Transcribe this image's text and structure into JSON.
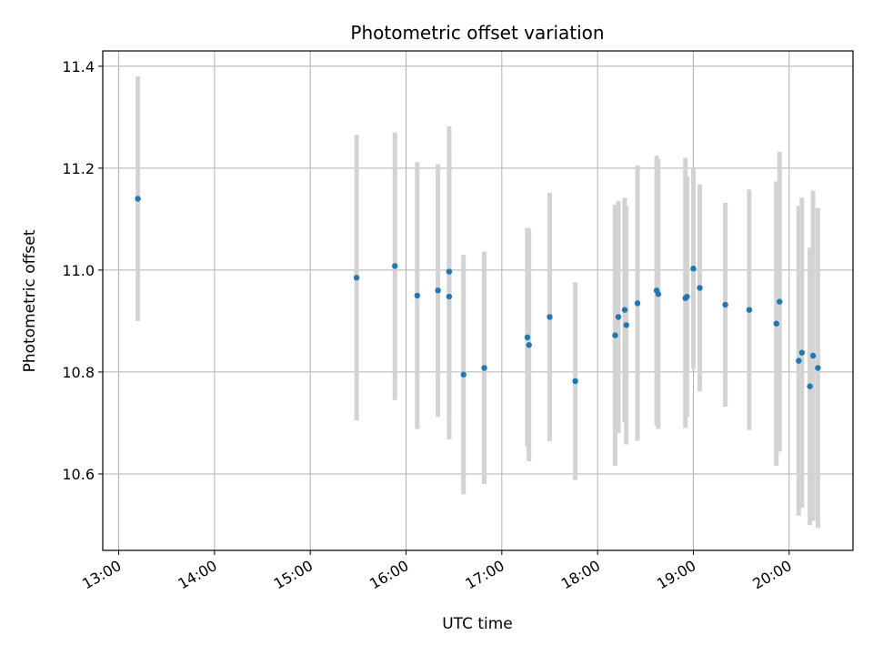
{
  "chart_data": {
    "type": "scatter",
    "title": "Photometric offset variation",
    "xlabel": "UTC time",
    "ylabel": "Photometric offset",
    "xlim": [
      "12:50",
      "20:40"
    ],
    "ylim": [
      10.45,
      11.43
    ],
    "x_ticks": [
      "13:00",
      "14:00",
      "15:00",
      "16:00",
      "17:00",
      "18:00",
      "19:00",
      "20:00"
    ],
    "y_ticks": [
      "10.6",
      "10.8",
      "11.0",
      "11.2",
      "11.4"
    ],
    "grid": true,
    "error_bar_color": "#d3d3d3",
    "point_color": "#1f77b4",
    "points": [
      {
        "x": "13:12",
        "y": 11.14,
        "ylow": 10.9,
        "yhigh": 11.38
      },
      {
        "x": "15:29",
        "y": 10.985,
        "ylow": 10.705,
        "yhigh": 11.265
      },
      {
        "x": "15:53",
        "y": 11.008,
        "ylow": 10.745,
        "yhigh": 11.27
      },
      {
        "x": "16:07",
        "y": 10.95,
        "ylow": 10.688,
        "yhigh": 11.212
      },
      {
        "x": "16:20",
        "y": 10.96,
        "ylow": 10.712,
        "yhigh": 11.208
      },
      {
        "x": "16:27",
        "y": 10.997,
        "ylow": 10.712,
        "yhigh": 11.282
      },
      {
        "x": "16:27",
        "y": 10.948,
        "ylow": 10.668,
        "yhigh": 11.228
      },
      {
        "x": "16:36",
        "y": 10.795,
        "ylow": 10.56,
        "yhigh": 11.03
      },
      {
        "x": "16:49",
        "y": 10.808,
        "ylow": 10.58,
        "yhigh": 11.036
      },
      {
        "x": "17:16",
        "y": 10.868,
        "ylow": 10.653,
        "yhigh": 11.083
      },
      {
        "x": "17:17",
        "y": 10.853,
        "ylow": 10.625,
        "yhigh": 11.081
      },
      {
        "x": "17:30",
        "y": 10.908,
        "ylow": 10.664,
        "yhigh": 11.152
      },
      {
        "x": "17:46",
        "y": 10.782,
        "ylow": 10.588,
        "yhigh": 10.976
      },
      {
        "x": "18:11",
        "y": 10.872,
        "ylow": 10.616,
        "yhigh": 11.128
      },
      {
        "x": "18:13",
        "y": 10.908,
        "ylow": 10.68,
        "yhigh": 11.136
      },
      {
        "x": "18:17",
        "y": 10.922,
        "ylow": 10.702,
        "yhigh": 11.142
      },
      {
        "x": "18:18",
        "y": 10.892,
        "ylow": 10.658,
        "yhigh": 11.126
      },
      {
        "x": "18:25",
        "y": 10.935,
        "ylow": 10.665,
        "yhigh": 11.205
      },
      {
        "x": "18:37",
        "y": 10.96,
        "ylow": 10.695,
        "yhigh": 11.225
      },
      {
        "x": "18:38",
        "y": 10.953,
        "ylow": 10.688,
        "yhigh": 11.218
      },
      {
        "x": "18:55",
        "y": 10.945,
        "ylow": 10.69,
        "yhigh": 11.22
      },
      {
        "x": "18:56",
        "y": 10.948,
        "ylow": 10.712,
        "yhigh": 11.184
      },
      {
        "x": "19:00",
        "y": 11.003,
        "ylow": 10.806,
        "yhigh": 11.2
      },
      {
        "x": "19:04",
        "y": 10.965,
        "ylow": 10.762,
        "yhigh": 11.168
      },
      {
        "x": "19:20",
        "y": 10.932,
        "ylow": 10.732,
        "yhigh": 11.132
      },
      {
        "x": "19:35",
        "y": 10.922,
        "ylow": 10.686,
        "yhigh": 11.158
      },
      {
        "x": "19:52",
        "y": 10.895,
        "ylow": 10.616,
        "yhigh": 11.174
      },
      {
        "x": "19:54",
        "y": 10.938,
        "ylow": 10.644,
        "yhigh": 11.232
      },
      {
        "x": "20:06",
        "y": 10.822,
        "ylow": 10.518,
        "yhigh": 11.126
      },
      {
        "x": "20:08",
        "y": 10.838,
        "ylow": 10.534,
        "yhigh": 11.142
      },
      {
        "x": "20:13",
        "y": 10.772,
        "ylow": 10.5,
        "yhigh": 11.044
      },
      {
        "x": "20:15",
        "y": 10.832,
        "ylow": 10.508,
        "yhigh": 11.156
      },
      {
        "x": "20:18",
        "y": 10.808,
        "ylow": 10.494,
        "yhigh": 11.122
      }
    ]
  }
}
